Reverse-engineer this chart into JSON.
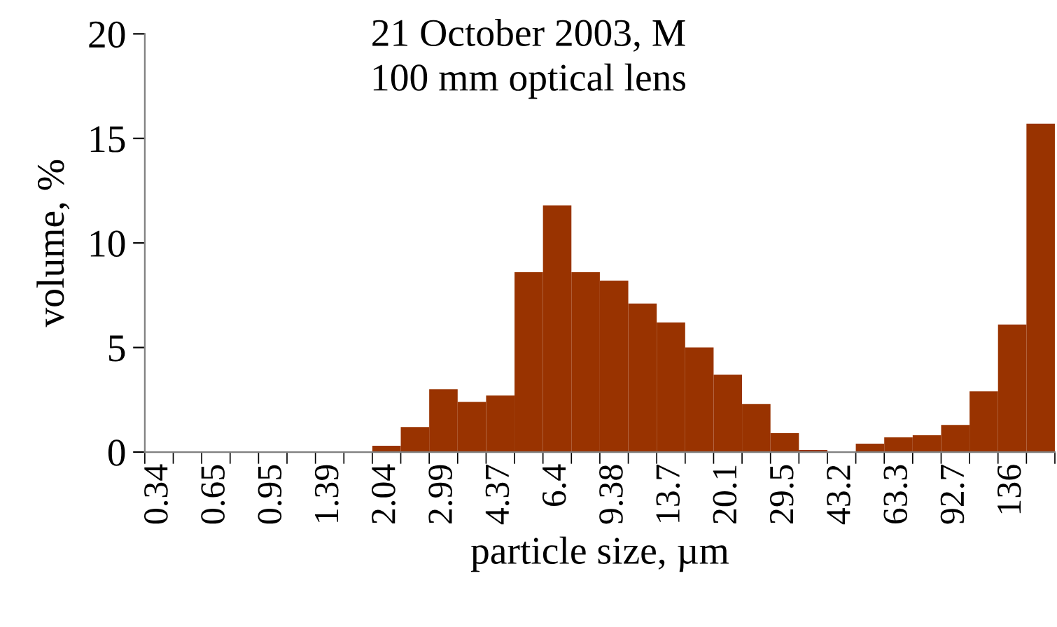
{
  "chart_data": {
    "type": "bar",
    "title": "21 October 2003, M\n100 mm optical lens",
    "xlabel": "particle size, µm",
    "ylabel": "volume, %",
    "categories": [
      "0.34",
      null,
      "0.65",
      null,
      "0.95",
      null,
      "1.39",
      null,
      "2.04",
      null,
      "2.99",
      null,
      "4.37",
      null,
      "6.4",
      null,
      "9.38",
      null,
      "13.7",
      null,
      "20.1",
      null,
      "29.5",
      null,
      "43.2",
      null,
      "63.3",
      null,
      "92.7",
      null,
      "136",
      null
    ],
    "values": [
      0,
      0,
      0,
      0,
      0,
      0,
      0,
      0,
      0.3,
      1.2,
      3.0,
      2.4,
      2.7,
      8.6,
      11.8,
      8.6,
      8.2,
      7.1,
      6.2,
      5.0,
      3.7,
      2.3,
      0.9,
      0.1,
      0,
      0.4,
      0.7,
      0.8,
      1.3,
      2.9,
      6.1,
      15.7
    ],
    "color": "#993300",
    "ylim": [
      0,
      20
    ],
    "yticks": [
      0,
      5,
      10,
      15,
      20
    ],
    "grid": false,
    "legend": false
  }
}
